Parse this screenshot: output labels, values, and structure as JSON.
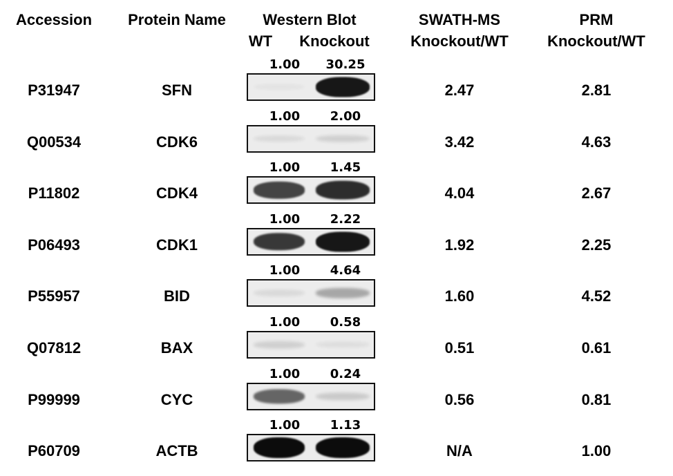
{
  "header": {
    "accession": "Accession",
    "protein_name": "Protein Name",
    "western_blot": "Western Blot",
    "wt": "WT",
    "knockout": "Knockout",
    "swath_line1": "SWATH-MS",
    "swath_line2": "Knockout/WT",
    "prm_line1": "PRM",
    "prm_line2": "Knockout/WT"
  },
  "rows": [
    {
      "accession": "P31947",
      "protein": "SFN",
      "wb_wt": "1.00",
      "wb_ko": "30.25",
      "swath": "2.47",
      "prm": "2.81",
      "band_wt_intensity": 0.02,
      "band_ko_intensity": 0.95
    },
    {
      "accession": "Q00534",
      "protein": "CDK6",
      "wb_wt": "1.00",
      "wb_ko": "2.00",
      "swath": "3.42",
      "prm": "4.63",
      "band_wt_intensity": 0.08,
      "band_ko_intensity": 0.12
    },
    {
      "accession": "P11802",
      "protein": "CDK4",
      "wb_wt": "1.00",
      "wb_ko": "1.45",
      "swath": "4.04",
      "prm": "2.67",
      "band_wt_intensity": 0.75,
      "band_ko_intensity": 0.85
    },
    {
      "accession": "P06493",
      "protein": "CDK1",
      "wb_wt": "1.00",
      "wb_ko": "2.22",
      "swath": "1.92",
      "prm": "2.25",
      "band_wt_intensity": 0.8,
      "band_ko_intensity": 0.95
    },
    {
      "accession": "P55957",
      "protein": "BID",
      "wb_wt": "1.00",
      "wb_ko": "4.64",
      "swath": "1.60",
      "prm": "4.52",
      "band_wt_intensity": 0.08,
      "band_ko_intensity": 0.3
    },
    {
      "accession": "Q07812",
      "protein": "BAX",
      "wb_wt": "1.00",
      "wb_ko": "0.58",
      "swath": "0.51",
      "prm": "0.61",
      "band_wt_intensity": 0.12,
      "band_ko_intensity": 0.06
    },
    {
      "accession": "P99999",
      "protein": "CYC",
      "wb_wt": "1.00",
      "wb_ko": "0.24",
      "swath": "0.56",
      "prm": "0.81",
      "band_wt_intensity": 0.6,
      "band_ko_intensity": 0.15
    },
    {
      "accession": "P60709",
      "protein": "ACTB",
      "wb_wt": "1.00",
      "wb_ko": "1.13",
      "swath": "N/A",
      "prm": "1.00",
      "band_wt_intensity": 1.0,
      "band_ko_intensity": 1.0
    }
  ]
}
